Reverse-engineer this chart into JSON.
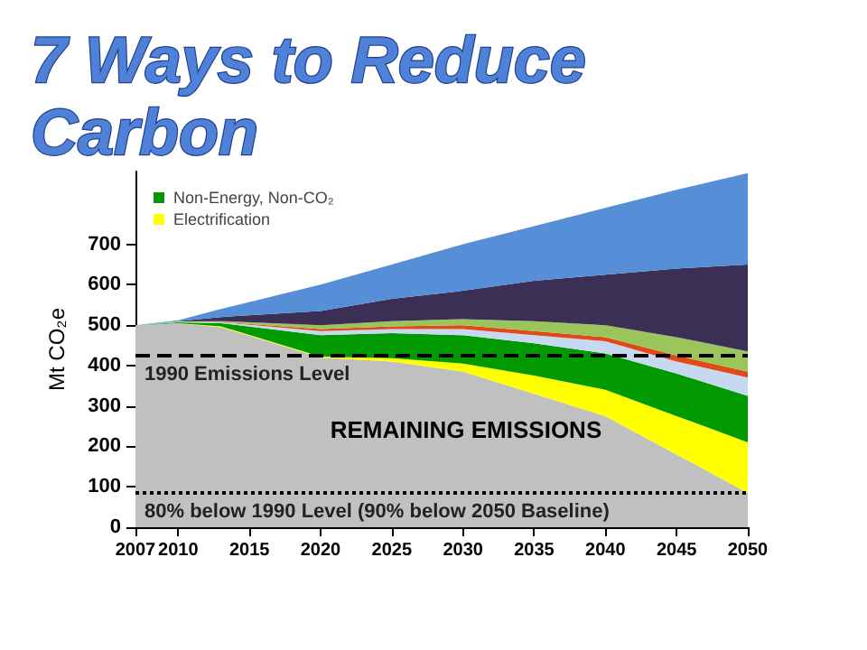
{
  "chart_data": {
    "type": "area",
    "stacked": true,
    "title": "7 Ways to Reduce Carbon",
    "ylabel": "Mt CO₂e",
    "x": [
      2007,
      2010,
      2013,
      2020,
      2025,
      2030,
      2035,
      2040,
      2045,
      2050
    ],
    "series": [
      {
        "color": "#c0c0c0",
        "values": [
          500,
          505,
          495,
          420,
          410,
          385,
          330,
          275,
          180,
          85
        ]
      },
      {
        "name": "Electrification",
        "color": "#ffff00",
        "values": [
          0,
          0,
          2,
          2,
          8,
          20,
          45,
          65,
          95,
          125
        ]
      },
      {
        "name": "Non-Energy, Non-CO₂",
        "color": "#009a00",
        "values": [
          0,
          2,
          8,
          53,
          62,
          70,
          80,
          90,
          105,
          115
        ]
      },
      {
        "color": "#c6d9f1",
        "values": [
          0,
          1,
          2,
          10,
          10,
          15,
          20,
          30,
          30,
          45
        ]
      },
      {
        "color": "#e04a16",
        "values": [
          0,
          0,
          1,
          5,
          7,
          10,
          10,
          10,
          15,
          15
        ]
      },
      {
        "color": "#9bc45a",
        "values": [
          0,
          1,
          2,
          10,
          13,
          15,
          25,
          30,
          45,
          50
        ]
      },
      {
        "color": "#3b2f55",
        "values": [
          0,
          1,
          10,
          35,
          55,
          70,
          100,
          125,
          170,
          215
        ]
      },
      {
        "color": "#568ed8",
        "values": [
          0,
          2,
          20,
          65,
          85,
          115,
          135,
          165,
          195,
          226
        ]
      }
    ],
    "xlim": [
      2007,
      2050
    ],
    "xticks": [
      2007,
      2010,
      2015,
      2020,
      2025,
      2030,
      2035,
      2040,
      2045,
      2050
    ],
    "ylim": [
      0,
      880
    ],
    "yticks": [
      0,
      100,
      200,
      300,
      400,
      500,
      600,
      700
    ],
    "ref_lines": [
      {
        "axis": "y",
        "value": 425,
        "label": "1990 Emissions Level",
        "line_style": "dashed",
        "color": "#000000"
      },
      {
        "axis": "y",
        "value": 85,
        "label": "80% below 1990 Level (90% below 2050 Baseline)",
        "line_style": "dotted",
        "color": "#000000"
      }
    ],
    "annotations": [
      "REMAINING EMISSIONS"
    ],
    "grid": false,
    "legend": "top left",
    "marker": "none"
  }
}
